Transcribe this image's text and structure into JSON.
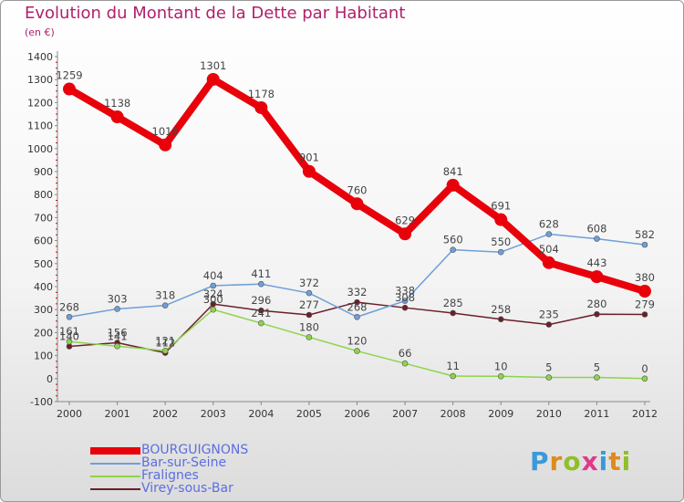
{
  "title": "Evolution du Montant de la Dette par Habitant",
  "unit": "(en €)",
  "logo_text": "Proxiti",
  "chart_data": {
    "type": "line",
    "x": [
      "2000",
      "2001",
      "2002",
      "2003",
      "2004",
      "2005",
      "2006",
      "2007",
      "2008",
      "2009",
      "2010",
      "2011",
      "2012"
    ],
    "y_ticks": [
      -100,
      0,
      100,
      200,
      300,
      400,
      500,
      600,
      700,
      800,
      900,
      1000,
      1100,
      1200,
      1300,
      1400
    ],
    "ylim": [
      -100,
      1400
    ],
    "grid": false,
    "legend_position": "bottom-left",
    "series": [
      {
        "name": "BOURGUIGNONS",
        "color": "#e8000b",
        "values": [
          1259,
          1138,
          1016,
          1301,
          1178,
          901,
          760,
          629,
          841,
          691,
          504,
          443,
          380
        ],
        "labels": [
          "1259",
          "1138",
          "1016",
          "1301",
          "1178",
          "901",
          "760",
          "629",
          "841",
          "691",
          "504",
          "443",
          "380"
        ]
      },
      {
        "name": "Bar-sur-Seine",
        "color": "#6f9fd8",
        "values": [
          268,
          303,
          318,
          404,
          411,
          372,
          268,
          338,
          560,
          550,
          628,
          608,
          582
        ],
        "labels": [
          "268",
          "303",
          "318",
          "404",
          "411",
          "372",
          "268",
          "338",
          "560",
          "550",
          "628",
          "608",
          "582"
        ]
      },
      {
        "name": "Fralignes",
        "color": "#8ed44a",
        "values": [
          161,
          141,
          121,
          300,
          241,
          180,
          120,
          66,
          11,
          10,
          5,
          5,
          0
        ],
        "labels": [
          "161",
          "141",
          "121",
          "300",
          "241",
          "180",
          "120",
          "66",
          "11",
          "10",
          "5",
          "5",
          "0"
        ]
      },
      {
        "name": "Virey-sous-Bar",
        "color": "#6b1f2a",
        "values": [
          140,
          156,
          112,
          324,
          296,
          277,
          332,
          308,
          285,
          258,
          235,
          280,
          279
        ],
        "labels": [
          "140",
          "156",
          "112",
          "324",
          "296",
          "277",
          "332",
          "308",
          "285",
          "258",
          "235",
          "280",
          "279"
        ]
      }
    ]
  }
}
